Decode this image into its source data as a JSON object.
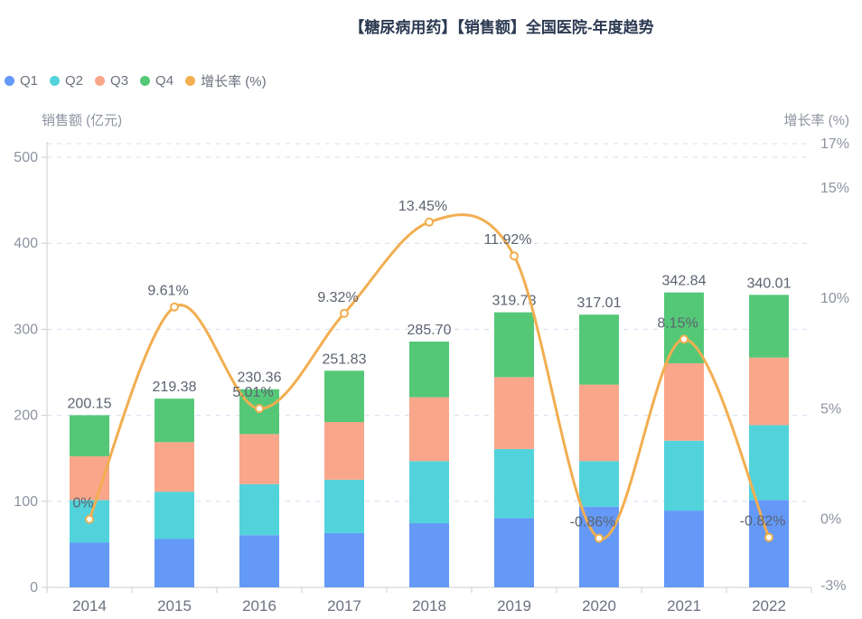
{
  "title": "【糖尿病用药】【销售额】全国医院-年度趋势",
  "legend": {
    "items": [
      {
        "label": "Q1",
        "color": "#6499F7"
      },
      {
        "label": "Q2",
        "color": "#52D3DB"
      },
      {
        "label": "Q3",
        "color": "#F9A68A"
      },
      {
        "label": "Q4",
        "color": "#55C878"
      },
      {
        "label": "增长率 (%)",
        "color": "#F2AE50"
      }
    ]
  },
  "chart_data": {
    "type": "bar",
    "subtype": "stacked-bars-with-growth-line",
    "title": "【糖尿病用药】【销售额】全国医院-年度趋势",
    "categories": [
      "2014",
      "2015",
      "2016",
      "2017",
      "2018",
      "2019",
      "2020",
      "2021",
      "2022"
    ],
    "series": [
      {
        "name": "Q1",
        "type": "bar",
        "stack": "total",
        "color": "#6499F7",
        "values": [
          52.0,
          56.2,
          60.7,
          63.1,
          74.6,
          80.5,
          93.8,
          89.2,
          101.5
        ]
      },
      {
        "name": "Q2",
        "type": "bar",
        "stack": "total",
        "color": "#52D3DB",
        "values": [
          49.5,
          55.0,
          59.3,
          62.1,
          72.2,
          80.3,
          53.0,
          81.3,
          87.1
        ]
      },
      {
        "name": "Q3",
        "type": "bar",
        "stack": "total",
        "color": "#F9A68A",
        "values": [
          50.9,
          57.6,
          58.2,
          67.0,
          74.2,
          83.6,
          88.9,
          90.0,
          78.5
        ]
      },
      {
        "name": "Q4",
        "type": "bar",
        "stack": "total",
        "color": "#55C878",
        "values": [
          47.75,
          50.58,
          52.16,
          59.63,
          64.7,
          75.33,
          81.31,
          82.34,
          72.91
        ]
      },
      {
        "name": "增长率 (%)",
        "type": "line",
        "yAxis": "right",
        "color": "#F2AE50",
        "smooth": true,
        "values": [
          0,
          9.61,
          5.01,
          9.32,
          13.45,
          11.92,
          -0.86,
          8.15,
          -0.82
        ],
        "labels": [
          "0%",
          "9.61%",
          "5.01%",
          "9.32%",
          "13.45%",
          "11.92%",
          "-0.86%",
          "8.15%",
          "-0.82%"
        ]
      }
    ],
    "bar_totals": {
      "values": [
        200.15,
        219.38,
        230.36,
        251.83,
        285.7,
        319.73,
        317.01,
        342.84,
        340.01
      ],
      "labels": [
        "200.15",
        "219.38",
        "230.36",
        "251.83",
        "285.70",
        "319.73",
        "317.01",
        "342.84",
        "340.01"
      ]
    },
    "left_axis": {
      "name": "销售额 (亿元)",
      "min": 0,
      "max": 500,
      "tick_values": [
        0,
        100,
        200,
        300,
        400,
        500
      ],
      "tick_labels": [
        "0",
        "100",
        "200",
        "300",
        "400",
        "500"
      ]
    },
    "right_axis": {
      "name": "增长率 (%)",
      "min": -3,
      "max": 17,
      "tick_values": [
        -3,
        0,
        5,
        10,
        15,
        17
      ],
      "tick_labels": [
        "-3%",
        "0%",
        "5%",
        "10%",
        "15%",
        "17%"
      ]
    },
    "grid": "horizontal dashed",
    "legend_position": "top-left"
  },
  "colors": {
    "q1": "#6499F7",
    "q2": "#52D3DB",
    "q3": "#F9A68A",
    "q4": "#55C878",
    "line": "#F2AE50",
    "gridline": "#d4dcf1",
    "axis_line": "#cccccc",
    "tick_text": "#8d93a0",
    "category_text": "#6b7280",
    "data_label_text": "#5c6370",
    "title_text": "#2c3a52"
  }
}
